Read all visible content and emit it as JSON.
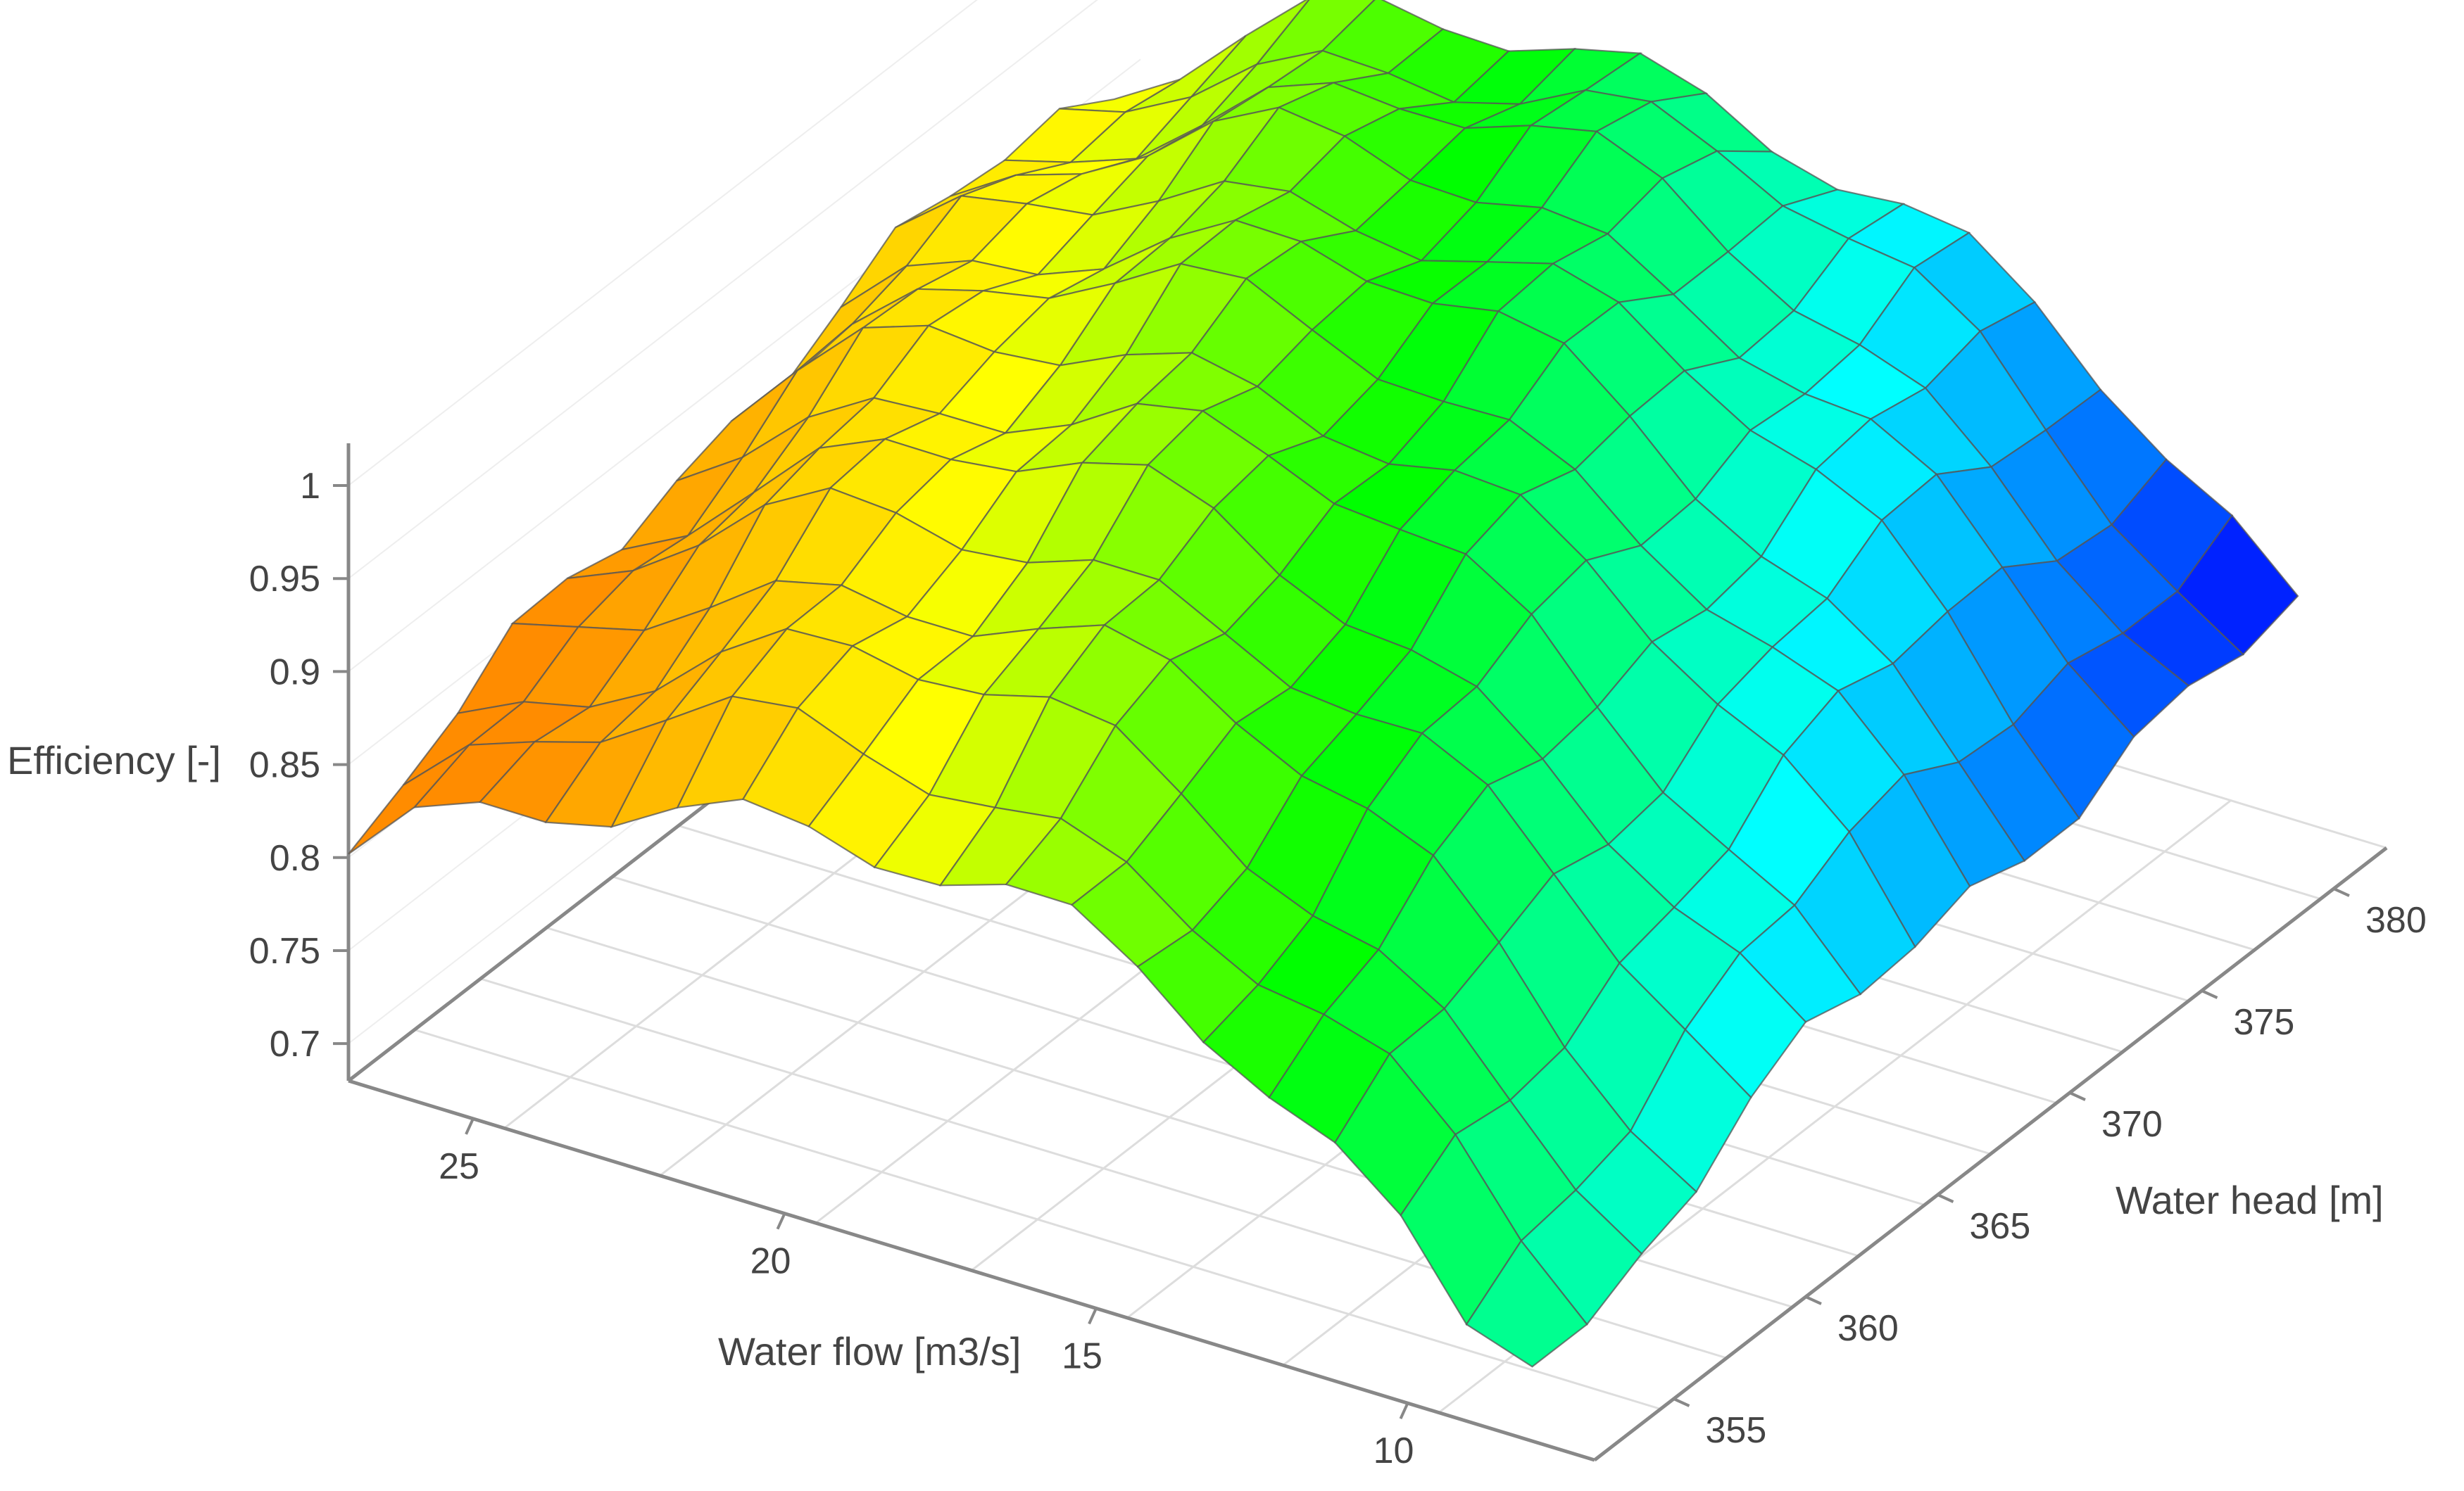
{
  "chart_data": {
    "type": "surface3d",
    "title": "",
    "xlabel": "Water flow [m3/s]",
    "ylabel": "Water head [m]",
    "zlabel": "Efficiency [-]",
    "x_ticks": [
      25,
      20,
      15,
      10
    ],
    "y_ticks": [
      355,
      360,
      365,
      370,
      375,
      380
    ],
    "z_ticks": [
      0.7,
      0.75,
      0.8,
      0.85,
      0.9,
      0.95,
      1
    ],
    "x_range": [
      7,
      27
    ],
    "y_range": [
      352,
      382
    ],
    "z_range": [
      0.7,
      1.0
    ],
    "grid": true,
    "colorscale": [
      "#0000ff",
      "#00ffff",
      "#00ff00",
      "#ffff00",
      "#ff8c00"
    ],
    "surface": {
      "x_from": 8,
      "x_to": 27,
      "x_count": 19,
      "y_from": 352,
      "y_to": 381,
      "y_count": 15
    }
  }
}
